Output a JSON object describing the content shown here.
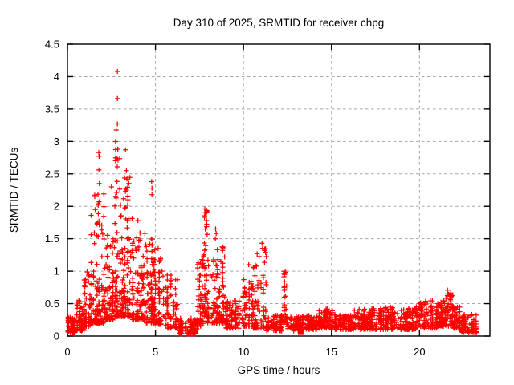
{
  "page": {
    "title": "Day 310 of 2025, SRMTID for receiver chpg"
  },
  "chart_data": {
    "type": "scatter",
    "title": "Day 310 of 2025, SRMTID for receiver chpg",
    "xlabel": "GPS time / hours",
    "ylabel": "SRMTID / TECUs",
    "xlim": [
      0,
      24
    ],
    "ylim": [
      0,
      4.5
    ],
    "xticks": [
      0,
      5,
      10,
      15,
      20
    ],
    "yticks": [
      0,
      0.5,
      1,
      1.5,
      2,
      2.5,
      3,
      3.5,
      4,
      4.5
    ],
    "grid": true,
    "grid_style": "dashed",
    "legend": "none",
    "marker": "plus",
    "colors": {
      "marker": "#ff0000",
      "grid": "#a6a6a6",
      "axis": "#000000",
      "background": "#ffffff"
    },
    "seed": 310,
    "cluster_fields": [
      "t_start_hours",
      "t_end_hours",
      "n_points",
      "y_min",
      "y_max",
      "low_skew_bias"
    ],
    "clusters": [
      [
        0.0,
        0.45,
        70,
        0.05,
        0.3,
        1.3
      ],
      [
        0.45,
        0.95,
        60,
        0.08,
        0.55,
        1.8
      ],
      [
        0.95,
        1.35,
        55,
        0.15,
        1.0,
        2.0
      ],
      [
        1.35,
        2.1,
        120,
        0.2,
        2.2,
        2.8
      ],
      [
        2.1,
        2.6,
        80,
        0.25,
        1.6,
        2.4
      ],
      [
        2.6,
        3.1,
        95,
        0.3,
        3.3,
        3.2
      ],
      [
        3.1,
        3.7,
        110,
        0.3,
        2.45,
        2.8
      ],
      [
        3.7,
        4.4,
        105,
        0.25,
        1.6,
        2.4
      ],
      [
        4.4,
        5.0,
        95,
        0.2,
        1.55,
        2.4
      ],
      [
        5.0,
        5.45,
        60,
        0.18,
        1.3,
        2.4
      ],
      [
        5.45,
        6.3,
        80,
        0.12,
        0.95,
        2.2
      ],
      [
        6.3,
        7.35,
        110,
        0.03,
        0.28,
        1.8
      ],
      [
        7.35,
        7.7,
        50,
        0.15,
        1.2,
        2.0
      ],
      [
        7.7,
        7.95,
        45,
        0.3,
        1.96,
        1.6
      ],
      [
        7.95,
        9.0,
        130,
        0.2,
        1.4,
        2.3
      ],
      [
        9.0,
        9.9,
        90,
        0.12,
        0.55,
        1.7
      ],
      [
        9.9,
        10.55,
        70,
        0.15,
        0.9,
        2.0
      ],
      [
        10.55,
        11.3,
        80,
        0.12,
        1.43,
        2.8
      ],
      [
        11.3,
        12.2,
        85,
        0.08,
        0.32,
        1.5
      ],
      [
        12.2,
        12.45,
        30,
        0.18,
        1.0,
        1.8
      ],
      [
        12.45,
        13.3,
        70,
        0.08,
        0.3,
        1.5
      ],
      [
        13.3,
        14.2,
        90,
        0.1,
        0.32,
        1.4
      ],
      [
        14.2,
        15.1,
        100,
        0.12,
        0.42,
        1.6
      ],
      [
        15.1,
        16.2,
        100,
        0.1,
        0.33,
        1.4
      ],
      [
        16.2,
        17.3,
        110,
        0.1,
        0.42,
        1.7
      ],
      [
        17.3,
        18.6,
        115,
        0.1,
        0.45,
        1.6
      ],
      [
        18.6,
        19.8,
        110,
        0.1,
        0.43,
        1.6
      ],
      [
        19.8,
        21.0,
        110,
        0.12,
        0.55,
        1.7
      ],
      [
        21.0,
        21.4,
        50,
        0.15,
        0.55,
        1.7
      ],
      [
        21.4,
        21.9,
        60,
        0.15,
        0.72,
        1.5
      ],
      [
        21.9,
        22.3,
        45,
        0.12,
        0.45,
        1.5
      ],
      [
        22.3,
        23.25,
        90,
        0.05,
        0.35,
        1.5
      ]
    ],
    "outliers": [
      [
        1.78,
        2.83
      ],
      [
        1.8,
        2.77
      ],
      [
        1.79,
        2.56
      ],
      [
        1.81,
        2.35
      ],
      [
        1.8,
        2.07
      ],
      [
        1.79,
        1.77
      ],
      [
        1.55,
        2.15
      ],
      [
        1.58,
        1.95
      ],
      [
        2.5,
        2.3
      ],
      [
        2.84,
        4.08
      ],
      [
        2.84,
        3.66
      ],
      [
        2.84,
        3.27
      ],
      [
        2.86,
        2.88
      ],
      [
        3.3,
        2.87
      ],
      [
        3.35,
        2.55
      ],
      [
        3.38,
        2.42
      ],
      [
        3.36,
        2.25
      ],
      [
        3.44,
        2.1
      ],
      [
        3.42,
        2.02
      ],
      [
        4.0,
        1.78
      ],
      [
        4.78,
        2.38
      ],
      [
        4.8,
        2.28
      ],
      [
        4.8,
        2.18
      ],
      [
        5.15,
        1.35
      ],
      [
        7.8,
        1.96
      ],
      [
        7.82,
        1.9
      ],
      [
        7.78,
        1.83
      ],
      [
        8.42,
        1.65
      ],
      [
        8.45,
        1.58
      ],
      [
        8.4,
        1.5
      ],
      [
        10.3,
        1.1
      ],
      [
        11.05,
        1.43
      ],
      [
        11.08,
        1.35
      ],
      [
        12.3,
        1.0
      ],
      [
        12.32,
        0.95
      ]
    ],
    "special_points": [
      {
        "x": 13.25,
        "y": 0.06,
        "marker": "filled-square"
      }
    ]
  }
}
